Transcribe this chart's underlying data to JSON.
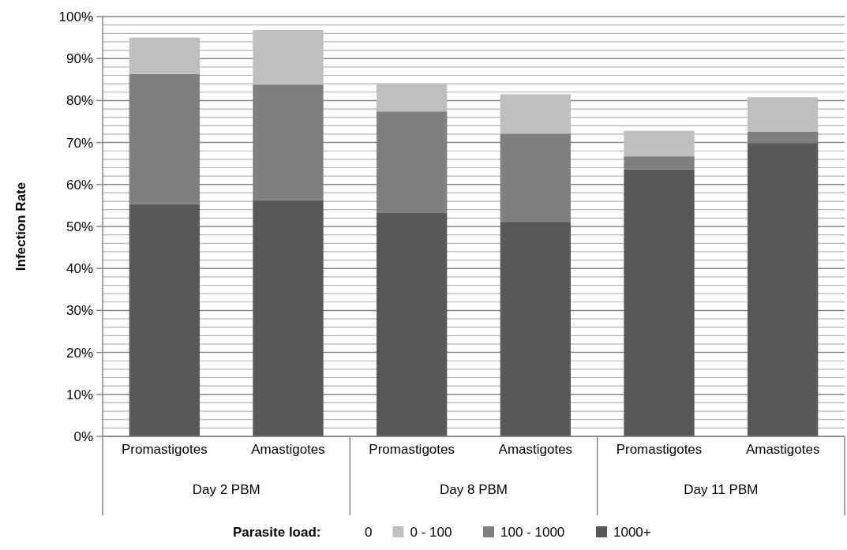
{
  "chart_data": {
    "type": "bar",
    "stacked": true,
    "ylabel": "Infection Rate",
    "legend_title": "Parasite load:",
    "legend": "bottom",
    "grid": "y",
    "categories": [
      "Promastigotes",
      "Amastigotes",
      "Promastigotes",
      "Amastigotes",
      "Promastigotes",
      "Amastigotes"
    ],
    "annotations": [
      "Day 2 PBM",
      "Day 8 PBM",
      "Day 11 PBM"
    ],
    "series": [
      {
        "name": "1000+",
        "color": "#595959",
        "values": [
          55.3,
          56.3,
          53.2,
          51.1,
          63.6,
          69.9
        ]
      },
      {
        "name": "100 - 1000",
        "color": "#7f7f7f",
        "values": [
          31.0,
          27.5,
          24.2,
          21.0,
          3.1,
          2.7
        ]
      },
      {
        "name": "0 - 100",
        "color": "#bfbfbf",
        "values": [
          8.7,
          13.0,
          6.5,
          9.4,
          6.1,
          8.2
        ]
      },
      {
        "name": "0",
        "values": [
          null,
          null,
          null,
          null,
          null,
          null
        ]
      }
    ],
    "ylim": [
      0,
      100
    ],
    "yticks": [
      {
        "value": 0,
        "label": "0%"
      },
      {
        "value": 2,
        "label": null
      },
      {
        "value": 4,
        "label": null
      },
      {
        "value": 6,
        "label": null
      },
      {
        "value": 8,
        "label": null
      },
      {
        "value": 10,
        "label": "10%"
      },
      {
        "value": 12,
        "label": null
      },
      {
        "value": 14,
        "label": null
      },
      {
        "value": 16,
        "label": null
      },
      {
        "value": 18,
        "label": null
      },
      {
        "value": 20,
        "label": "20%"
      },
      {
        "value": 22,
        "label": null
      },
      {
        "value": 24,
        "label": null
      },
      {
        "value": 26,
        "label": null
      },
      {
        "value": 28,
        "label": null
      },
      {
        "value": 30,
        "label": "30%"
      },
      {
        "value": 32,
        "label": null
      },
      {
        "value": 34,
        "label": null
      },
      {
        "value": 36,
        "label": null
      },
      {
        "value": 38,
        "label": null
      },
      {
        "value": 40,
        "label": "40%"
      },
      {
        "value": 42,
        "label": null
      },
      {
        "value": 44,
        "label": null
      },
      {
        "value": 46,
        "label": null
      },
      {
        "value": 48,
        "label": null
      },
      {
        "value": 50,
        "label": "50%"
      },
      {
        "value": 52,
        "label": null
      },
      {
        "value": 54,
        "label": null
      },
      {
        "value": 56,
        "label": null
      },
      {
        "value": 58,
        "label": null
      },
      {
        "value": 60,
        "label": "60%"
      },
      {
        "value": 62,
        "label": null
      },
      {
        "value": 64,
        "label": null
      },
      {
        "value": 66,
        "label": null
      },
      {
        "value": 68,
        "label": null
      },
      {
        "value": 70,
        "label": "70%"
      },
      {
        "value": 72,
        "label": null
      },
      {
        "value": 74,
        "label": null
      },
      {
        "value": 76,
        "label": null
      },
      {
        "value": 78,
        "label": null
      },
      {
        "value": 80,
        "label": "80%"
      },
      {
        "value": 82,
        "label": null
      },
      {
        "value": 84,
        "label": null
      },
      {
        "value": 86,
        "label": null
      },
      {
        "value": 88,
        "label": null
      },
      {
        "value": 90,
        "label": "90%"
      },
      {
        "value": 92,
        "label": null
      },
      {
        "value": 94,
        "label": null
      },
      {
        "value": 96,
        "label": null
      },
      {
        "value": 98,
        "label": null
      },
      {
        "value": 100,
        "label": "100%"
      }
    ]
  }
}
